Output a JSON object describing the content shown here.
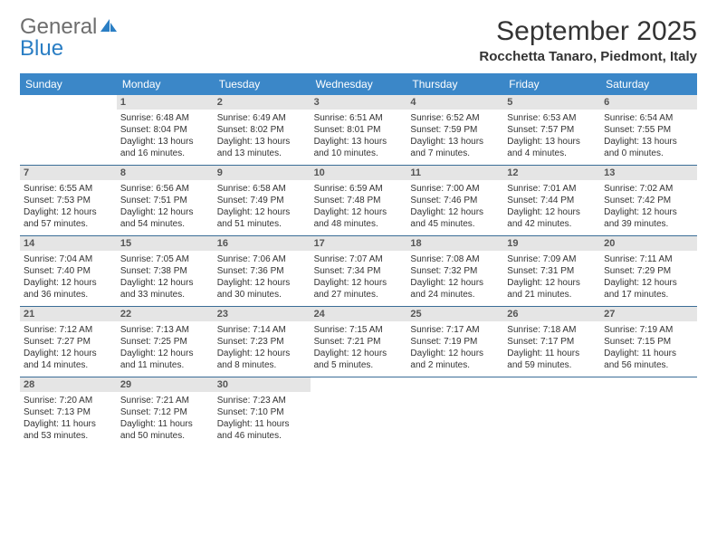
{
  "logo": {
    "word1": "General",
    "word2": "Blue"
  },
  "title": "September 2025",
  "subtitle": "Rocchetta Tanaro, Piedmont, Italy",
  "colors": {
    "header_bg": "#3b87c8",
    "header_text": "#ffffff",
    "daynum_bg": "#e5e5e5",
    "week_border": "#3b6d97",
    "logo_gray": "#6e6e6e",
    "logo_blue": "#2a7ec4"
  },
  "typography": {
    "title_fontsize": 30,
    "subtitle_fontsize": 15,
    "dayname_fontsize": 12,
    "daynum_fontsize": 11,
    "info_fontsize": 10
  },
  "dayNames": [
    "Sunday",
    "Monday",
    "Tuesday",
    "Wednesday",
    "Thursday",
    "Friday",
    "Saturday"
  ],
  "weeks": [
    [
      {
        "n": "",
        "sr": "",
        "ss": "",
        "dl": ""
      },
      {
        "n": "1",
        "sr": "Sunrise: 6:48 AM",
        "ss": "Sunset: 8:04 PM",
        "dl": "Daylight: 13 hours and 16 minutes."
      },
      {
        "n": "2",
        "sr": "Sunrise: 6:49 AM",
        "ss": "Sunset: 8:02 PM",
        "dl": "Daylight: 13 hours and 13 minutes."
      },
      {
        "n": "3",
        "sr": "Sunrise: 6:51 AM",
        "ss": "Sunset: 8:01 PM",
        "dl": "Daylight: 13 hours and 10 minutes."
      },
      {
        "n": "4",
        "sr": "Sunrise: 6:52 AM",
        "ss": "Sunset: 7:59 PM",
        "dl": "Daylight: 13 hours and 7 minutes."
      },
      {
        "n": "5",
        "sr": "Sunrise: 6:53 AM",
        "ss": "Sunset: 7:57 PM",
        "dl": "Daylight: 13 hours and 4 minutes."
      },
      {
        "n": "6",
        "sr": "Sunrise: 6:54 AM",
        "ss": "Sunset: 7:55 PM",
        "dl": "Daylight: 13 hours and 0 minutes."
      }
    ],
    [
      {
        "n": "7",
        "sr": "Sunrise: 6:55 AM",
        "ss": "Sunset: 7:53 PM",
        "dl": "Daylight: 12 hours and 57 minutes."
      },
      {
        "n": "8",
        "sr": "Sunrise: 6:56 AM",
        "ss": "Sunset: 7:51 PM",
        "dl": "Daylight: 12 hours and 54 minutes."
      },
      {
        "n": "9",
        "sr": "Sunrise: 6:58 AM",
        "ss": "Sunset: 7:49 PM",
        "dl": "Daylight: 12 hours and 51 minutes."
      },
      {
        "n": "10",
        "sr": "Sunrise: 6:59 AM",
        "ss": "Sunset: 7:48 PM",
        "dl": "Daylight: 12 hours and 48 minutes."
      },
      {
        "n": "11",
        "sr": "Sunrise: 7:00 AM",
        "ss": "Sunset: 7:46 PM",
        "dl": "Daylight: 12 hours and 45 minutes."
      },
      {
        "n": "12",
        "sr": "Sunrise: 7:01 AM",
        "ss": "Sunset: 7:44 PM",
        "dl": "Daylight: 12 hours and 42 minutes."
      },
      {
        "n": "13",
        "sr": "Sunrise: 7:02 AM",
        "ss": "Sunset: 7:42 PM",
        "dl": "Daylight: 12 hours and 39 minutes."
      }
    ],
    [
      {
        "n": "14",
        "sr": "Sunrise: 7:04 AM",
        "ss": "Sunset: 7:40 PM",
        "dl": "Daylight: 12 hours and 36 minutes."
      },
      {
        "n": "15",
        "sr": "Sunrise: 7:05 AM",
        "ss": "Sunset: 7:38 PM",
        "dl": "Daylight: 12 hours and 33 minutes."
      },
      {
        "n": "16",
        "sr": "Sunrise: 7:06 AM",
        "ss": "Sunset: 7:36 PM",
        "dl": "Daylight: 12 hours and 30 minutes."
      },
      {
        "n": "17",
        "sr": "Sunrise: 7:07 AM",
        "ss": "Sunset: 7:34 PM",
        "dl": "Daylight: 12 hours and 27 minutes."
      },
      {
        "n": "18",
        "sr": "Sunrise: 7:08 AM",
        "ss": "Sunset: 7:32 PM",
        "dl": "Daylight: 12 hours and 24 minutes."
      },
      {
        "n": "19",
        "sr": "Sunrise: 7:09 AM",
        "ss": "Sunset: 7:31 PM",
        "dl": "Daylight: 12 hours and 21 minutes."
      },
      {
        "n": "20",
        "sr": "Sunrise: 7:11 AM",
        "ss": "Sunset: 7:29 PM",
        "dl": "Daylight: 12 hours and 17 minutes."
      }
    ],
    [
      {
        "n": "21",
        "sr": "Sunrise: 7:12 AM",
        "ss": "Sunset: 7:27 PM",
        "dl": "Daylight: 12 hours and 14 minutes."
      },
      {
        "n": "22",
        "sr": "Sunrise: 7:13 AM",
        "ss": "Sunset: 7:25 PM",
        "dl": "Daylight: 12 hours and 11 minutes."
      },
      {
        "n": "23",
        "sr": "Sunrise: 7:14 AM",
        "ss": "Sunset: 7:23 PM",
        "dl": "Daylight: 12 hours and 8 minutes."
      },
      {
        "n": "24",
        "sr": "Sunrise: 7:15 AM",
        "ss": "Sunset: 7:21 PM",
        "dl": "Daylight: 12 hours and 5 minutes."
      },
      {
        "n": "25",
        "sr": "Sunrise: 7:17 AM",
        "ss": "Sunset: 7:19 PM",
        "dl": "Daylight: 12 hours and 2 minutes."
      },
      {
        "n": "26",
        "sr": "Sunrise: 7:18 AM",
        "ss": "Sunset: 7:17 PM",
        "dl": "Daylight: 11 hours and 59 minutes."
      },
      {
        "n": "27",
        "sr": "Sunrise: 7:19 AM",
        "ss": "Sunset: 7:15 PM",
        "dl": "Daylight: 11 hours and 56 minutes."
      }
    ],
    [
      {
        "n": "28",
        "sr": "Sunrise: 7:20 AM",
        "ss": "Sunset: 7:13 PM",
        "dl": "Daylight: 11 hours and 53 minutes."
      },
      {
        "n": "29",
        "sr": "Sunrise: 7:21 AM",
        "ss": "Sunset: 7:12 PM",
        "dl": "Daylight: 11 hours and 50 minutes."
      },
      {
        "n": "30",
        "sr": "Sunrise: 7:23 AM",
        "ss": "Sunset: 7:10 PM",
        "dl": "Daylight: 11 hours and 46 minutes."
      },
      {
        "n": "",
        "sr": "",
        "ss": "",
        "dl": ""
      },
      {
        "n": "",
        "sr": "",
        "ss": "",
        "dl": ""
      },
      {
        "n": "",
        "sr": "",
        "ss": "",
        "dl": ""
      },
      {
        "n": "",
        "sr": "",
        "ss": "",
        "dl": ""
      }
    ]
  ]
}
